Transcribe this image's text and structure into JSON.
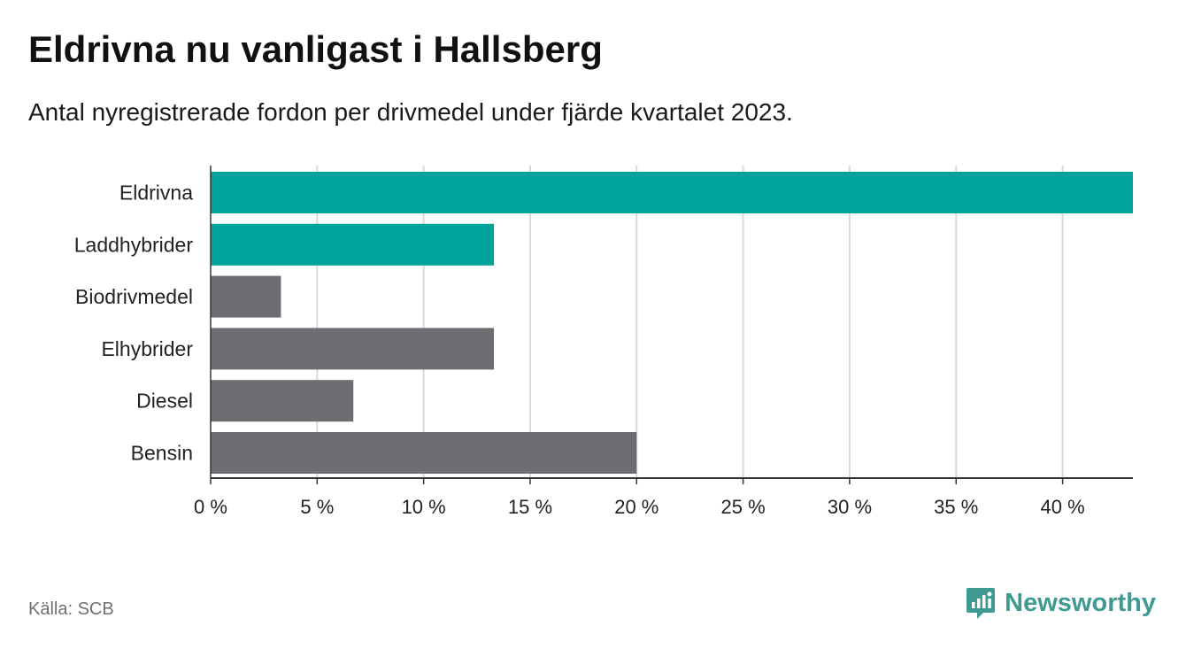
{
  "title": "Eldrivna nu vanligast i Hallsberg",
  "subtitle": "Antal nyregistrerade fordon per drivmedel under fjärde kvartalet 2023.",
  "source": "Källa: SCB",
  "brand": {
    "name": "Newsworthy",
    "color": "#3e9a92",
    "icon": "newsworthy-logo-icon"
  },
  "colors": {
    "highlight": "#00a39a",
    "default": "#6e6d72",
    "grid": "#d9d9d9",
    "axis": "#333333"
  },
  "chart_data": {
    "type": "bar",
    "orientation": "horizontal",
    "categories": [
      "Eldrivna",
      "Laddhybrider",
      "Biodrivmedel",
      "Elhybrider",
      "Diesel",
      "Bensin"
    ],
    "values": [
      43.3,
      13.3,
      3.3,
      13.3,
      6.7,
      20.0
    ],
    "highlighted": [
      true,
      true,
      false,
      false,
      false,
      false
    ],
    "unit": "%",
    "xlim": [
      0,
      43.3
    ],
    "xticks": [
      0,
      5,
      10,
      15,
      20,
      25,
      30,
      35,
      40
    ],
    "xtick_labels": [
      "0 %",
      "5 %",
      "10 %",
      "15 %",
      "20 %",
      "25 %",
      "30 %",
      "35 %",
      "40 %"
    ],
    "grid": true,
    "xlabel": "",
    "ylabel": ""
  }
}
